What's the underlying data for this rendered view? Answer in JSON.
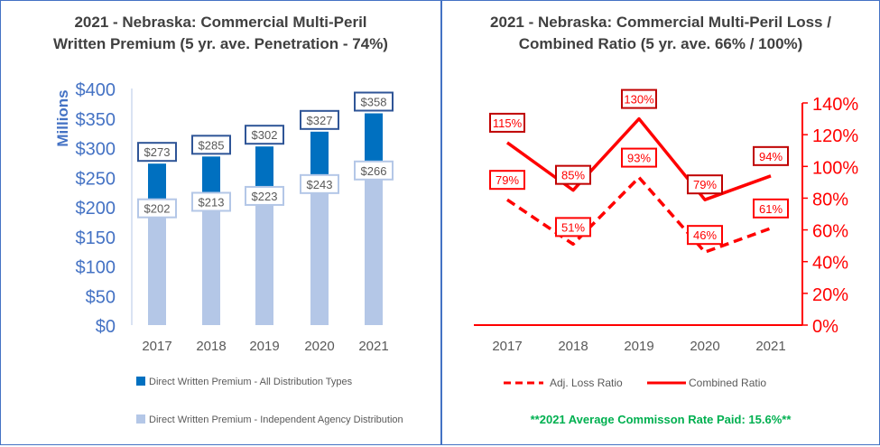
{
  "chart_data": [
    {
      "type": "bar",
      "title": "2021 - Nebraska: Commercial  Multi-Peril\nWritten Premium  (5 yr. ave. Penetration - 74%)",
      "ylabel": "Millions",
      "categories": [
        "2017",
        "2018",
        "2019",
        "2020",
        "2021"
      ],
      "ylim": [
        0,
        400
      ],
      "yticks": [
        "$0",
        "$50",
        "$100",
        "$150",
        "$200",
        "$250",
        "$300",
        "$350",
        "$400"
      ],
      "series": [
        {
          "name": "Direct Written Premium - All Distribution Types",
          "values": [
            273,
            285,
            302,
            327,
            358
          ],
          "labels": [
            "$273",
            "$285",
            "$302",
            "$327",
            "$358"
          ],
          "color": "#0070C0"
        },
        {
          "name": "Direct Written Premium - Independent Agency Distribution",
          "values": [
            202,
            213,
            223,
            243,
            266
          ],
          "labels": [
            "$202",
            "$213",
            "$223",
            "$243",
            "$266"
          ],
          "color": "#B4C7E7"
        }
      ],
      "legend": "bottom"
    },
    {
      "type": "line",
      "title": "2021 - Nebraska: Commercial Multi-Peril Loss /\nCombined Ratio (5 yr. ave.  66% / 100%)",
      "categories": [
        "2017",
        "2018",
        "2019",
        "2020",
        "2021"
      ],
      "ylim": [
        0,
        140
      ],
      "yaxis_side": "right",
      "yticks": [
        "0%",
        "20%",
        "40%",
        "60%",
        "80%",
        "100%",
        "120%",
        "140%"
      ],
      "series": [
        {
          "name": "Adj. Loss Ratio",
          "values": [
            79,
            51,
            93,
            46,
            61
          ],
          "labels": [
            "79%",
            "51%",
            "93%",
            "46%",
            "61%"
          ],
          "style": "dashed",
          "color": "#FF0000"
        },
        {
          "name": "Combined Ratio",
          "values": [
            115,
            85,
            130,
            79,
            94
          ],
          "labels": [
            "115%",
            "85%",
            "130%",
            "79%",
            "94%"
          ],
          "style": "solid",
          "color": "#FF0000"
        }
      ],
      "legend": "bottom",
      "footnote": "**2021 Average Commisson Rate Paid: 15.6%**"
    }
  ]
}
